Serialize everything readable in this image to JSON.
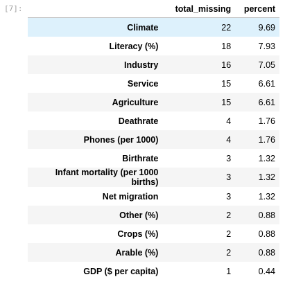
{
  "cell": {
    "prompt": "[7]:"
  },
  "table": {
    "columns": [
      "",
      "total_missing",
      "percent"
    ],
    "rows": [
      {
        "label": "Climate",
        "total_missing": "22",
        "percent": "9.69"
      },
      {
        "label": "Literacy (%)",
        "total_missing": "18",
        "percent": "7.93"
      },
      {
        "label": "Industry",
        "total_missing": "16",
        "percent": "7.05"
      },
      {
        "label": "Service",
        "total_missing": "15",
        "percent": "6.61"
      },
      {
        "label": "Agriculture",
        "total_missing": "15",
        "percent": "6.61"
      },
      {
        "label": "Deathrate",
        "total_missing": "4",
        "percent": "1.76"
      },
      {
        "label": "Phones (per 1000)",
        "total_missing": "4",
        "percent": "1.76"
      },
      {
        "label": "Birthrate",
        "total_missing": "3",
        "percent": "1.32"
      },
      {
        "label": "Infant mortality (per 1000 births)",
        "total_missing": "3",
        "percent": "1.32"
      },
      {
        "label": "Net migration",
        "total_missing": "3",
        "percent": "1.32"
      },
      {
        "label": "Other (%)",
        "total_missing": "2",
        "percent": "0.88"
      },
      {
        "label": "Crops (%)",
        "total_missing": "2",
        "percent": "0.88"
      },
      {
        "label": "Arable (%)",
        "total_missing": "2",
        "percent": "0.88"
      },
      {
        "label": "GDP ($ per capita)",
        "total_missing": "1",
        "percent": "0.44"
      }
    ]
  },
  "colors": {
    "highlight_row": "#ddf1fc",
    "stripe_row": "#f5f5f5",
    "prompt_text": "#9e9e9e"
  }
}
